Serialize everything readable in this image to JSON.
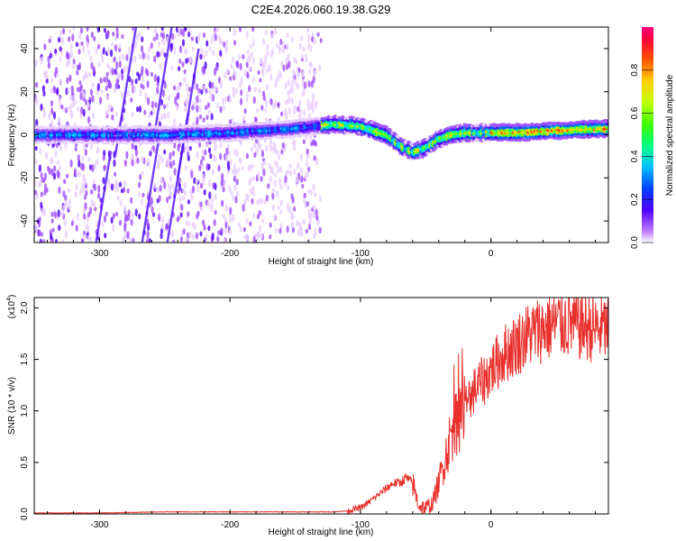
{
  "title": "C2E4.2026.060.19.38.G29",
  "chart_data": [
    {
      "type": "heatmap",
      "xlabel": "Height of straight line (km)",
      "ylabel": "Frequency (Hz)",
      "xlim": [
        -350,
        90
      ],
      "ylim": [
        -50,
        50
      ],
      "xticks": [
        -300,
        -200,
        -100,
        0
      ],
      "yticks": [
        -40,
        -20,
        0,
        20,
        40
      ],
      "colorbar": {
        "label": "Normalized spectral amplitude",
        "range": [
          0.0,
          1.0
        ],
        "ticks": [
          "0.0",
          "0.2",
          "0.4",
          "0.6",
          "0.8"
        ],
        "tick_values": [
          0.0,
          0.2,
          0.4,
          0.6,
          0.8
        ]
      },
      "ridge": {
        "description": "Dominant frequency ridge vs height",
        "x": [
          -350,
          -300,
          -250,
          -200,
          -150,
          -120,
          -100,
          -80,
          -70,
          -60,
          -50,
          -40,
          -30,
          -20,
          0,
          20,
          50,
          90
        ],
        "freq": [
          0,
          0,
          0,
          1,
          3,
          5,
          4,
          0,
          -5,
          -8,
          -6,
          -2,
          0,
          1,
          1,
          1,
          2,
          3
        ]
      },
      "noise_extent_x": [
        -350,
        -130
      ]
    },
    {
      "type": "line",
      "xlabel": "Height of straight line (km)",
      "ylabel": "SNR (10 * v/v)",
      "yscale_label": "(x10",
      "yscale_exp": "4",
      "yscale_close": ")",
      "xlim": [
        -350,
        90
      ],
      "ylim": [
        0,
        2.1
      ],
      "xticks": [
        -300,
        -200,
        -100,
        0
      ],
      "yticks": [
        "0.0",
        "0.5",
        "1.0",
        "1.5",
        "2.0"
      ],
      "ytick_values": [
        0.0,
        0.5,
        1.0,
        1.5,
        2.0
      ],
      "series": [
        {
          "name": "SNR",
          "color": "#e8302c",
          "x": [
            -350,
            -300,
            -250,
            -200,
            -150,
            -120,
            -110,
            -100,
            -95,
            -90,
            -85,
            -80,
            -75,
            -70,
            -65,
            -60,
            -58,
            -55,
            -50,
            -45,
            -40,
            -35,
            -30,
            -25,
            -20,
            -15,
            -10,
            -5,
            0,
            10,
            20,
            30,
            40,
            50,
            60,
            70,
            80,
            90
          ],
          "values": [
            0.01,
            0.01,
            0.02,
            0.02,
            0.02,
            0.02,
            0.03,
            0.06,
            0.1,
            0.15,
            0.2,
            0.25,
            0.3,
            0.3,
            0.35,
            0.3,
            0.2,
            0.08,
            0.05,
            0.1,
            0.3,
            0.55,
            0.8,
            0.95,
            1.05,
            1.15,
            1.25,
            1.3,
            1.4,
            1.55,
            1.65,
            1.75,
            1.8,
            1.85,
            1.85,
            1.82,
            1.8,
            1.8
          ]
        }
      ]
    }
  ]
}
